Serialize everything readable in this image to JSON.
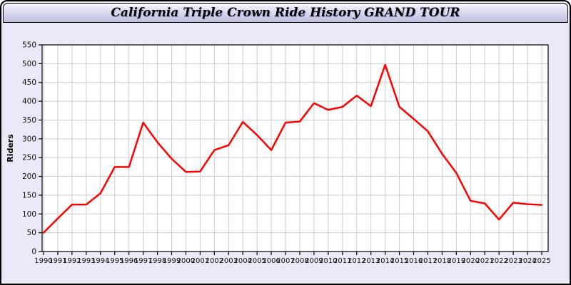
{
  "title": "California Triple Crown Ride History GRAND TOUR",
  "chart_data": {
    "type": "line",
    "title": "California Triple Crown Ride History GRAND TOUR",
    "xlabel": "",
    "ylabel": "Riders",
    "ylim": [
      0,
      550
    ],
    "ytick_step": 50,
    "grid": true,
    "legend_position": "none",
    "x": [
      1990,
      1991,
      1992,
      1993,
      1994,
      1995,
      1996,
      1997,
      1998,
      1999,
      2000,
      2001,
      2002,
      2003,
      2004,
      2005,
      2006,
      2007,
      2008,
      2009,
      2010,
      2011,
      2012,
      2013,
      2014,
      2015,
      2016,
      2017,
      2018,
      2019,
      2020,
      2021,
      2022,
      2023,
      2024,
      2025
    ],
    "series": [
      {
        "name": "Riders",
        "values": [
          50,
          88,
          125,
          125,
          155,
          225,
          225,
          343,
          291,
          247,
          212,
          213,
          270,
          283,
          345,
          310,
          270,
          343,
          346,
          395,
          377,
          385,
          415,
          387,
          497,
          385,
          353,
          320,
          260,
          209,
          135,
          128,
          85,
          130,
          126,
          124
        ]
      }
    ]
  },
  "colors": {
    "line": "#ff0000",
    "plot_background": "#ffffff",
    "grid": "#cccccc",
    "axis": "#000000",
    "tick_text": "#111111",
    "panel_background": "#e9e9f7"
  }
}
